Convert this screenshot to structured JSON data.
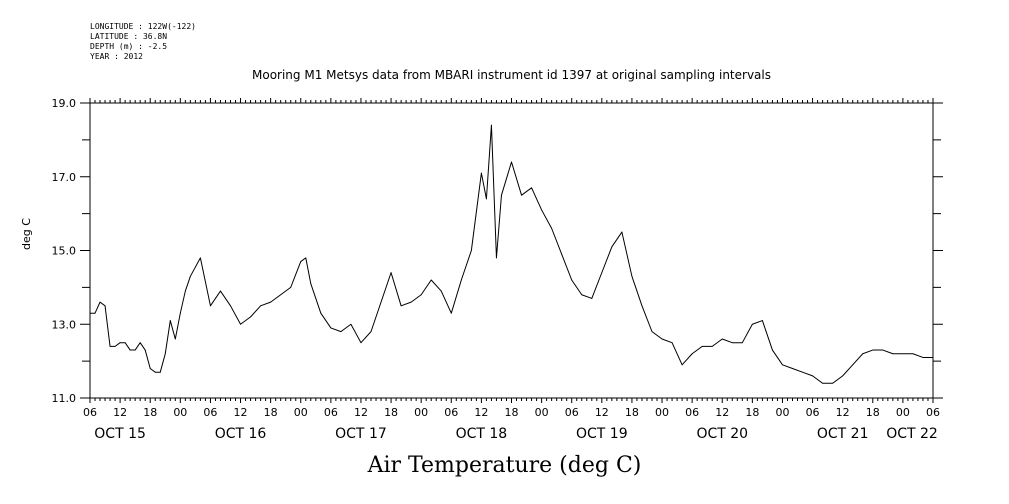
{
  "header": {
    "longitude": "LONGITUDE : 122W(-122)",
    "latitude": "LATITUDE : 36.8N",
    "depth": "DEPTH (m) : -2.5",
    "year": "YEAR : 2012"
  },
  "chart_data": {
    "type": "line",
    "title": "Mooring M1 Metsys data from MBARI instrument id 1397 at original sampling intervals",
    "ylabel": "deg C",
    "footer_title": "Air Temperature (deg C)",
    "ylim": [
      11.0,
      19.0
    ],
    "yticks": [
      "11.0",
      "13.0",
      "15.0",
      "17.0",
      "19.0"
    ],
    "xlim": [
      "2012-10-15 06:00",
      "2012-10-22 06:00"
    ],
    "x_hour_ticks": [
      "06",
      "12",
      "18",
      "00",
      "06",
      "12",
      "18",
      "00",
      "06",
      "12",
      "18",
      "00",
      "06",
      "12",
      "18",
      "00",
      "06",
      "12",
      "18",
      "00",
      "06",
      "12",
      "18",
      "00",
      "06",
      "12",
      "18",
      "00",
      "06"
    ],
    "day_labels": [
      "OCT 15",
      "OCT 16",
      "OCT 17",
      "OCT 18",
      "OCT 19",
      "OCT 20",
      "OCT 21",
      "OCT 22"
    ],
    "grid": false,
    "series": [
      {
        "x": [
          "2012-10-15 06:00",
          "2012-10-15 07:00",
          "2012-10-15 08:00",
          "2012-10-15 09:00",
          "2012-10-15 10:00",
          "2012-10-15 11:00",
          "2012-10-15 12:00",
          "2012-10-15 13:00",
          "2012-10-15 14:00",
          "2012-10-15 15:00",
          "2012-10-15 16:00",
          "2012-10-15 17:00",
          "2012-10-15 18:00",
          "2012-10-15 19:00",
          "2012-10-15 20:00",
          "2012-10-15 21:00",
          "2012-10-15 22:00",
          "2012-10-15 23:00",
          "2012-10-16 00:00",
          "2012-10-16 01:00",
          "2012-10-16 02:00",
          "2012-10-16 04:00",
          "2012-10-16 06:00",
          "2012-10-16 08:00",
          "2012-10-16 10:00",
          "2012-10-16 12:00",
          "2012-10-16 14:00",
          "2012-10-16 16:00",
          "2012-10-16 18:00",
          "2012-10-16 20:00",
          "2012-10-16 22:00",
          "2012-10-17 00:00",
          "2012-10-17 01:00",
          "2012-10-17 02:00",
          "2012-10-17 04:00",
          "2012-10-17 06:00",
          "2012-10-17 08:00",
          "2012-10-17 10:00",
          "2012-10-17 12:00",
          "2012-10-17 14:00",
          "2012-10-17 16:00",
          "2012-10-17 18:00",
          "2012-10-17 20:00",
          "2012-10-17 22:00",
          "2012-10-18 00:00",
          "2012-10-18 02:00",
          "2012-10-18 04:00",
          "2012-10-18 06:00",
          "2012-10-18 08:00",
          "2012-10-18 10:00",
          "2012-10-18 12:00",
          "2012-10-18 13:00",
          "2012-10-18 14:00",
          "2012-10-18 15:00",
          "2012-10-18 16:00",
          "2012-10-18 18:00",
          "2012-10-18 20:00",
          "2012-10-18 22:00",
          "2012-10-19 00:00",
          "2012-10-19 02:00",
          "2012-10-19 04:00",
          "2012-10-19 06:00",
          "2012-10-19 08:00",
          "2012-10-19 10:00",
          "2012-10-19 12:00",
          "2012-10-19 14:00",
          "2012-10-19 16:00",
          "2012-10-19 18:00",
          "2012-10-19 20:00",
          "2012-10-19 22:00",
          "2012-10-20 00:00",
          "2012-10-20 02:00",
          "2012-10-20 04:00",
          "2012-10-20 06:00",
          "2012-10-20 08:00",
          "2012-10-20 10:00",
          "2012-10-20 12:00",
          "2012-10-20 14:00",
          "2012-10-20 16:00",
          "2012-10-20 18:00",
          "2012-10-20 20:00",
          "2012-10-20 22:00",
          "2012-10-21 00:00",
          "2012-10-21 02:00",
          "2012-10-21 04:00",
          "2012-10-21 06:00",
          "2012-10-21 08:00",
          "2012-10-21 10:00",
          "2012-10-21 12:00",
          "2012-10-21 14:00",
          "2012-10-21 16:00",
          "2012-10-21 18:00",
          "2012-10-21 20:00",
          "2012-10-21 22:00",
          "2012-10-22 00:00",
          "2012-10-22 02:00",
          "2012-10-22 04:00",
          "2012-10-22 06:00"
        ],
        "values": [
          13.3,
          13.3,
          13.6,
          13.5,
          12.4,
          12.4,
          12.5,
          12.5,
          12.3,
          12.3,
          12.5,
          12.3,
          11.8,
          11.7,
          11.7,
          12.2,
          13.1,
          12.6,
          13.3,
          13.9,
          14.3,
          14.8,
          13.5,
          13.9,
          13.5,
          13.0,
          13.2,
          13.5,
          13.6,
          13.8,
          14.0,
          14.7,
          14.8,
          14.1,
          13.3,
          12.9,
          12.8,
          13.0,
          12.5,
          12.8,
          13.6,
          14.4,
          13.5,
          13.6,
          13.8,
          14.2,
          13.9,
          13.3,
          14.2,
          15.0,
          17.1,
          16.4,
          18.4,
          14.8,
          16.5,
          17.4,
          16.5,
          16.7,
          16.1,
          15.6,
          14.9,
          14.2,
          13.8,
          13.7,
          14.4,
          15.1,
          15.5,
          14.3,
          13.5,
          12.8,
          12.6,
          12.5,
          11.9,
          12.2,
          12.4,
          12.4,
          12.6,
          12.5,
          12.5,
          13.0,
          13.1,
          12.3,
          11.9,
          11.8,
          11.7,
          11.6,
          11.4,
          11.4,
          11.6,
          11.9,
          12.2,
          12.3,
          12.3,
          12.2,
          12.2,
          12.2,
          12.1,
          12.1
        ]
      }
    ]
  }
}
